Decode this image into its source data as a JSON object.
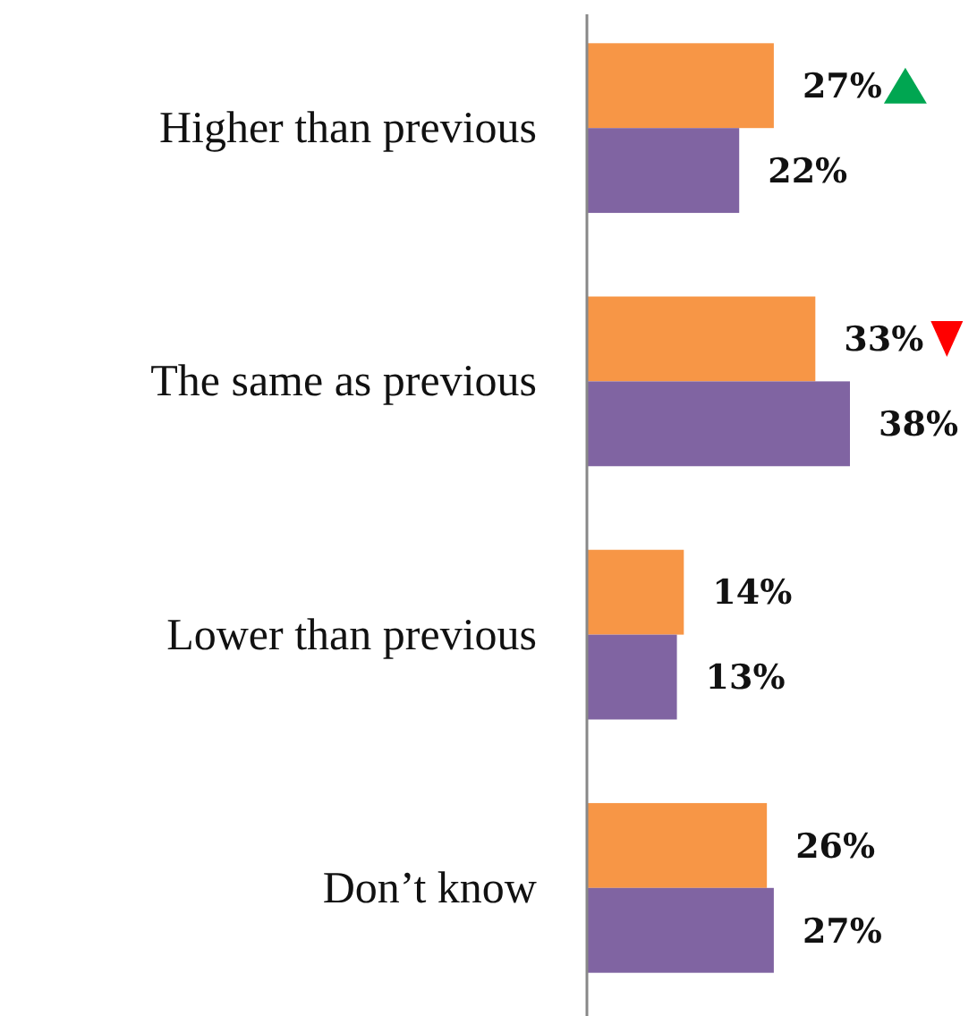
{
  "chart_data": {
    "type": "bar",
    "orientation": "horizontal",
    "categories": [
      "Higher than previous",
      "The same as previous",
      "Lower than previous",
      "Don’t know"
    ],
    "series": [
      {
        "color": "#f79646",
        "values": [
          27,
          33,
          14,
          26
        ],
        "value_labels": [
          "27%",
          "33%",
          "14%",
          "26%"
        ]
      },
      {
        "color": "#8064a2",
        "values": [
          22,
          38,
          13,
          27
        ],
        "value_labels": [
          "22%",
          "38%",
          "13%",
          "27%"
        ]
      }
    ]
  }
}
